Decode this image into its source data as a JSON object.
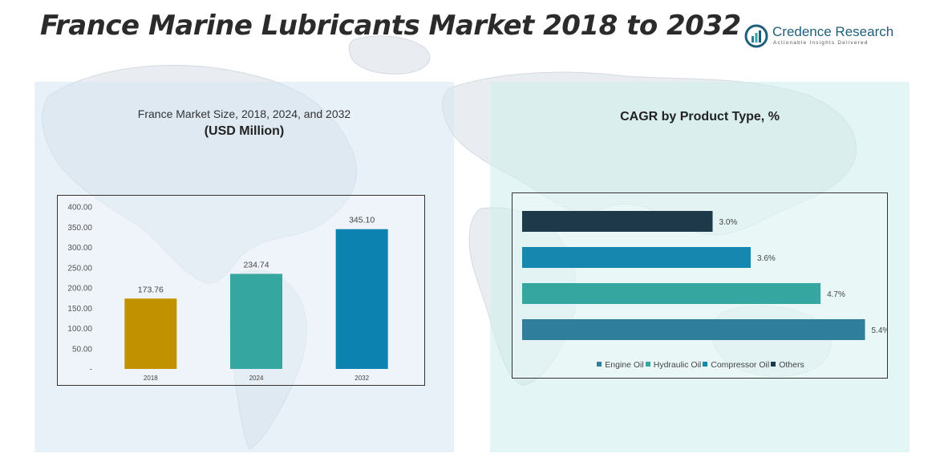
{
  "title": "France Marine Lubricants Market 2018 to 2032",
  "logo": {
    "name": "Credence Research",
    "tagline": "Actionable Insights Delivered"
  },
  "colors": {
    "gold": "#C19100",
    "teal": "#35A7A0",
    "blue": "#0B82AF",
    "dark_navy": "#1E3A4A",
    "mid_blue": "#1688B0",
    "steel_blue": "#2E7E9C"
  },
  "left_panel": {
    "title": "France Market Size, 2018, 2024, and 2032",
    "subtitle": "(USD Million)"
  },
  "right_panel": {
    "title": "CAGR by Product Type, %"
  },
  "chart_data": [
    {
      "type": "bar",
      "title": "France Market Size, 2018, 2024, and 2032",
      "subtitle": "(USD Million)",
      "categories": [
        "2018",
        "2024",
        "2032"
      ],
      "values": [
        173.76,
        234.74,
        345.1
      ],
      "value_labels": [
        "173.76",
        "234.74",
        "345.10"
      ],
      "bar_colors": [
        "#C19100",
        "#35A7A0",
        "#0B82AF"
      ],
      "ylim": [
        0,
        400
      ],
      "yticks": [
        0,
        50,
        100,
        150,
        200,
        250,
        300,
        350,
        400
      ],
      "ytick_labels": [
        "-",
        "50.00",
        "100.00",
        "150.00",
        "200.00",
        "250.00",
        "300.00",
        "350.00",
        "400.00"
      ],
      "grid": false
    },
    {
      "type": "bar",
      "orientation": "horizontal",
      "title": "CAGR by Product Type, %",
      "categories": [
        "Others",
        "Compressor Oil",
        "Hydraulic Oil",
        "Engine Oil"
      ],
      "values": [
        3.0,
        3.6,
        4.7,
        5.4
      ],
      "value_labels": [
        "3.0%",
        "3.6%",
        "4.7%",
        "5.4%"
      ],
      "bar_colors": [
        "#1E3A4A",
        "#1688B0",
        "#35A7A0",
        "#2E7E9C"
      ],
      "xlim": [
        0,
        6
      ],
      "legend": {
        "placement": "bottom",
        "items": [
          {
            "label": "Engine Oil",
            "color": "#2E7E9C"
          },
          {
            "label": "Hydraulic Oil",
            "color": "#35A7A0"
          },
          {
            "label": "Compressor Oil",
            "color": "#1688B0"
          },
          {
            "label": "Others",
            "color": "#1E3A4A"
          }
        ]
      }
    }
  ]
}
